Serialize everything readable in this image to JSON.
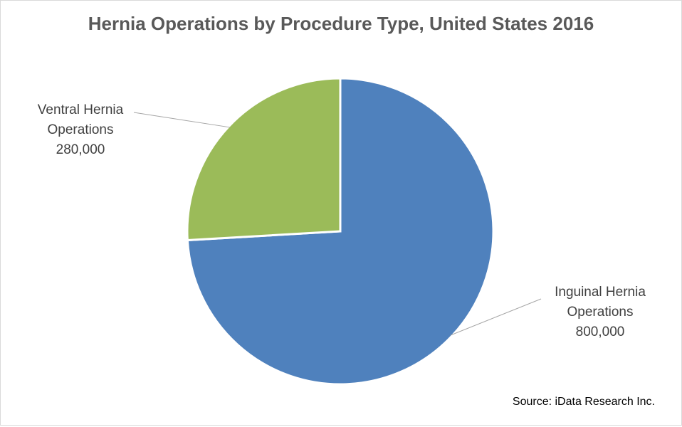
{
  "chart_data": {
    "type": "pie",
    "title": "Hernia Operations by Procedure Type, United States 2016",
    "categories": [
      "Inguinal Hernia Operations",
      "Ventral Hernia Operations"
    ],
    "values": [
      800000,
      280000
    ],
    "value_labels": [
      "800,000",
      "280,000"
    ],
    "colors": [
      "#4f81bd",
      "#9bbb59"
    ],
    "annotation": "Source: iData Research Inc."
  }
}
